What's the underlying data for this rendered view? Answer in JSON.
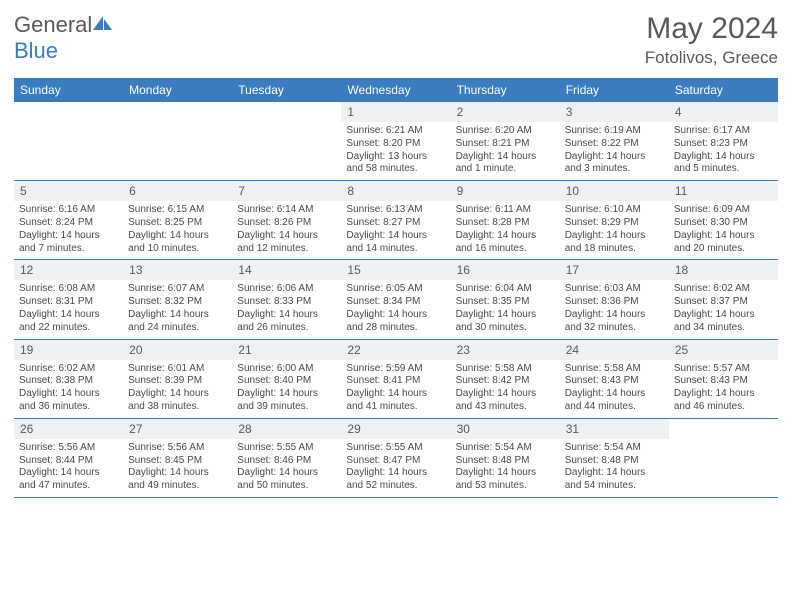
{
  "brand": {
    "part1": "General",
    "part2": "Blue"
  },
  "title": {
    "month": "May 2024",
    "location": "Fotolivos, Greece"
  },
  "colors": {
    "header_bg": "#3b7bbf",
    "header_text": "#ffffff",
    "daynum_bg": "#eef1f4",
    "text": "#595959",
    "body_text": "#4a4a4a",
    "page_bg": "#ffffff"
  },
  "day_names": [
    "Sunday",
    "Monday",
    "Tuesday",
    "Wednesday",
    "Thursday",
    "Friday",
    "Saturday"
  ],
  "weeks": [
    [
      {
        "n": "",
        "sr": "",
        "ss": "",
        "dl": ""
      },
      {
        "n": "",
        "sr": "",
        "ss": "",
        "dl": ""
      },
      {
        "n": "",
        "sr": "",
        "ss": "",
        "dl": ""
      },
      {
        "n": "1",
        "sr": "Sunrise: 6:21 AM",
        "ss": "Sunset: 8:20 PM",
        "dl": "Daylight: 13 hours and 58 minutes."
      },
      {
        "n": "2",
        "sr": "Sunrise: 6:20 AM",
        "ss": "Sunset: 8:21 PM",
        "dl": "Daylight: 14 hours and 1 minute."
      },
      {
        "n": "3",
        "sr": "Sunrise: 6:19 AM",
        "ss": "Sunset: 8:22 PM",
        "dl": "Daylight: 14 hours and 3 minutes."
      },
      {
        "n": "4",
        "sr": "Sunrise: 6:17 AM",
        "ss": "Sunset: 8:23 PM",
        "dl": "Daylight: 14 hours and 5 minutes."
      }
    ],
    [
      {
        "n": "5",
        "sr": "Sunrise: 6:16 AM",
        "ss": "Sunset: 8:24 PM",
        "dl": "Daylight: 14 hours and 7 minutes."
      },
      {
        "n": "6",
        "sr": "Sunrise: 6:15 AM",
        "ss": "Sunset: 8:25 PM",
        "dl": "Daylight: 14 hours and 10 minutes."
      },
      {
        "n": "7",
        "sr": "Sunrise: 6:14 AM",
        "ss": "Sunset: 8:26 PM",
        "dl": "Daylight: 14 hours and 12 minutes."
      },
      {
        "n": "8",
        "sr": "Sunrise: 6:13 AM",
        "ss": "Sunset: 8:27 PM",
        "dl": "Daylight: 14 hours and 14 minutes."
      },
      {
        "n": "9",
        "sr": "Sunrise: 6:11 AM",
        "ss": "Sunset: 8:28 PM",
        "dl": "Daylight: 14 hours and 16 minutes."
      },
      {
        "n": "10",
        "sr": "Sunrise: 6:10 AM",
        "ss": "Sunset: 8:29 PM",
        "dl": "Daylight: 14 hours and 18 minutes."
      },
      {
        "n": "11",
        "sr": "Sunrise: 6:09 AM",
        "ss": "Sunset: 8:30 PM",
        "dl": "Daylight: 14 hours and 20 minutes."
      }
    ],
    [
      {
        "n": "12",
        "sr": "Sunrise: 6:08 AM",
        "ss": "Sunset: 8:31 PM",
        "dl": "Daylight: 14 hours and 22 minutes."
      },
      {
        "n": "13",
        "sr": "Sunrise: 6:07 AM",
        "ss": "Sunset: 8:32 PM",
        "dl": "Daylight: 14 hours and 24 minutes."
      },
      {
        "n": "14",
        "sr": "Sunrise: 6:06 AM",
        "ss": "Sunset: 8:33 PM",
        "dl": "Daylight: 14 hours and 26 minutes."
      },
      {
        "n": "15",
        "sr": "Sunrise: 6:05 AM",
        "ss": "Sunset: 8:34 PM",
        "dl": "Daylight: 14 hours and 28 minutes."
      },
      {
        "n": "16",
        "sr": "Sunrise: 6:04 AM",
        "ss": "Sunset: 8:35 PM",
        "dl": "Daylight: 14 hours and 30 minutes."
      },
      {
        "n": "17",
        "sr": "Sunrise: 6:03 AM",
        "ss": "Sunset: 8:36 PM",
        "dl": "Daylight: 14 hours and 32 minutes."
      },
      {
        "n": "18",
        "sr": "Sunrise: 6:02 AM",
        "ss": "Sunset: 8:37 PM",
        "dl": "Daylight: 14 hours and 34 minutes."
      }
    ],
    [
      {
        "n": "19",
        "sr": "Sunrise: 6:02 AM",
        "ss": "Sunset: 8:38 PM",
        "dl": "Daylight: 14 hours and 36 minutes."
      },
      {
        "n": "20",
        "sr": "Sunrise: 6:01 AM",
        "ss": "Sunset: 8:39 PM",
        "dl": "Daylight: 14 hours and 38 minutes."
      },
      {
        "n": "21",
        "sr": "Sunrise: 6:00 AM",
        "ss": "Sunset: 8:40 PM",
        "dl": "Daylight: 14 hours and 39 minutes."
      },
      {
        "n": "22",
        "sr": "Sunrise: 5:59 AM",
        "ss": "Sunset: 8:41 PM",
        "dl": "Daylight: 14 hours and 41 minutes."
      },
      {
        "n": "23",
        "sr": "Sunrise: 5:58 AM",
        "ss": "Sunset: 8:42 PM",
        "dl": "Daylight: 14 hours and 43 minutes."
      },
      {
        "n": "24",
        "sr": "Sunrise: 5:58 AM",
        "ss": "Sunset: 8:43 PM",
        "dl": "Daylight: 14 hours and 44 minutes."
      },
      {
        "n": "25",
        "sr": "Sunrise: 5:57 AM",
        "ss": "Sunset: 8:43 PM",
        "dl": "Daylight: 14 hours and 46 minutes."
      }
    ],
    [
      {
        "n": "26",
        "sr": "Sunrise: 5:56 AM",
        "ss": "Sunset: 8:44 PM",
        "dl": "Daylight: 14 hours and 47 minutes."
      },
      {
        "n": "27",
        "sr": "Sunrise: 5:56 AM",
        "ss": "Sunset: 8:45 PM",
        "dl": "Daylight: 14 hours and 49 minutes."
      },
      {
        "n": "28",
        "sr": "Sunrise: 5:55 AM",
        "ss": "Sunset: 8:46 PM",
        "dl": "Daylight: 14 hours and 50 minutes."
      },
      {
        "n": "29",
        "sr": "Sunrise: 5:55 AM",
        "ss": "Sunset: 8:47 PM",
        "dl": "Daylight: 14 hours and 52 minutes."
      },
      {
        "n": "30",
        "sr": "Sunrise: 5:54 AM",
        "ss": "Sunset: 8:48 PM",
        "dl": "Daylight: 14 hours and 53 minutes."
      },
      {
        "n": "31",
        "sr": "Sunrise: 5:54 AM",
        "ss": "Sunset: 8:48 PM",
        "dl": "Daylight: 14 hours and 54 minutes."
      },
      {
        "n": "",
        "sr": "",
        "ss": "",
        "dl": ""
      }
    ]
  ]
}
